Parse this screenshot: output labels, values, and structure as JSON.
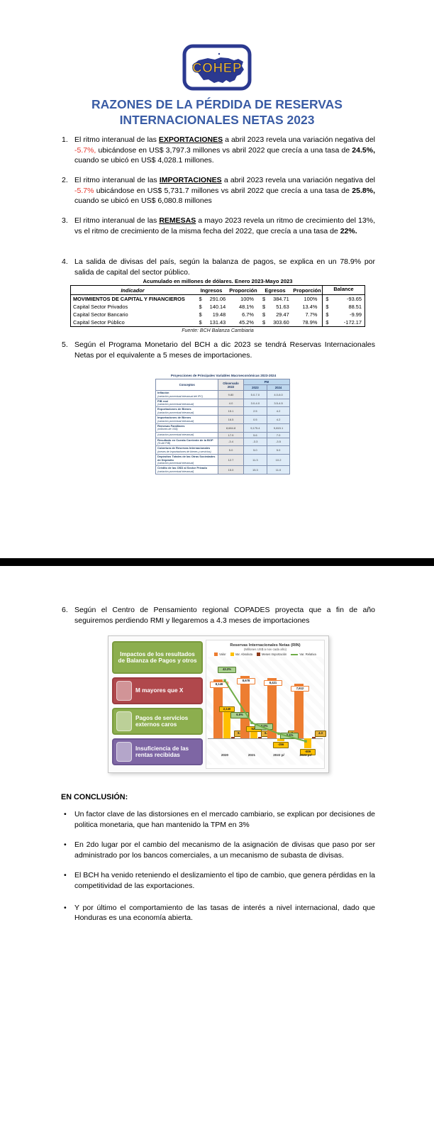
{
  "logo": {
    "text": "COHEP"
  },
  "title": {
    "line1": "RAZONES DE LA PÉRDIDA DE RESERVAS",
    "line2": "INTERNACIONALES NETAS 2023"
  },
  "items": {
    "i1": {
      "num": "1.",
      "pre": "El ritmo interanual de las ",
      "kw": "EXPORTACIONES",
      "m1": " a abril 2023 revela una variación negativa del ",
      "red": "-5.7%,",
      "m2": " ubicándose en US$ 3,797.3 millones vs abril 2022 que crecía a una tasa de ",
      "b": "24.5%,",
      "m3": " cuando se ubicó en US$ 4,028.1 millones."
    },
    "i2": {
      "num": "2.",
      "pre": "El ritmo interanual de las ",
      "kw": "IMPORTACIONES",
      "m1": " a abril 2023 revela una variación negativa del ",
      "red": "-5.7%",
      "m2": " ubicándose en US$ 5,731.7 millones vs abril 2022 que crecía a una tasa de ",
      "b": "25.8%,",
      "m3": " cuando se ubicó en US$ 6,080.8 millones"
    },
    "i3": {
      "num": "3.",
      "pre": "El ritmo interanual de las ",
      "kw": "REMESAS",
      "m1": " a mayo 2023 revela un ritmo de crecimiento del 13%, vs el ritmo de crecimiento de la misma fecha del 2022, que crecía a una tasa de ",
      "b": "22%."
    },
    "i4": {
      "num": "4.",
      "text": "La salida de divisas del país, según la balanza de pagos, se explica en un 78.9% por salida de capital del sector público."
    },
    "i5": {
      "num": "5.",
      "text": "Según el Programa Monetario del BCH a dic 2023 se tendrá Reservas Internacionales Netas por el equivalente a 5 meses de importaciones."
    },
    "i6": {
      "num": "6.",
      "text": "Según el Centro de Pensamiento regional COPADES proyecta que a fin de año seguiremos perdiendo RMI y llegaremos a 4.3 meses de importaciones"
    }
  },
  "table1": {
    "title": "Acumulado en millones de dólares. Enero 2023-Mayo 2023",
    "headers": [
      "Indicador",
      "Ingresos",
      "Proporción",
      "Egresos",
      "Proporción",
      "Balance"
    ],
    "rows": [
      {
        "label": "MOVIMIENTOS DE CAPITAL Y FINANCIEROS",
        "bold": true,
        "ingresos": "291.06",
        "prop1": "100%",
        "egresos": "384.71",
        "prop2": "100%",
        "balance": "-93.65"
      },
      {
        "label": "Capital Sector Privados",
        "bold": false,
        "ingresos": "140.14",
        "prop1": "48.1%",
        "egresos": "51.63",
        "prop2": "13.4%",
        "balance": "88.51"
      },
      {
        "label": "Capital Sector Bancario",
        "bold": false,
        "ingresos": "19.48",
        "prop1": "6.7%",
        "egresos": "29.47",
        "prop2": "7.7%",
        "balance": "-9.99"
      },
      {
        "label": "Capital Sector Público",
        "bold": false,
        "ingresos": "131.43",
        "prop1": "45.2%",
        "egresos": "303.60",
        "prop2": "78.9%",
        "balance": "-172.17"
      }
    ],
    "source": "Fuente: BCH Balanza Cambiaria"
  },
  "pm_table": {
    "title": "Proyecciones de Principales Variables Macroeconómicas 2023-2024",
    "headers": {
      "conceptos": "Conceptos",
      "observado": "Observado",
      "observado_year": "2022",
      "pm": "PM",
      "y2023": "2023",
      "y2024": "2024"
    },
    "rows": [
      {
        "label": "Inflación",
        "sub": "(variación porcentual interanual del IPC)",
        "v": [
          "9.80",
          "5.0-7.0",
          "4.0-6.0"
        ]
      },
      {
        "label": "PIB real",
        "sub": "(variación porcentual interanual)",
        "v": [
          "4.0",
          "3.0-4.0",
          "3.5-4.5"
        ]
      },
      {
        "label": "Exportaciones de Bienes",
        "sub": "(variación porcentual interanual)",
        "v": [
          "15.1",
          "2.5",
          "4.2"
        ]
      },
      {
        "label": "Importaciones de Bienes",
        "sub": "(variación porcentual interanual)",
        "v": [
          "16.5",
          "0.5",
          "4.2"
        ]
      },
      {
        "label": "Remesas Familiares",
        "sub": "(millones de US$)",
        "v": [
          "8,684.8",
          "9,175.4",
          "9,815.1"
        ]
      },
      {
        "label": "",
        "sub": "(variación porcentual interanual)",
        "v": [
          "17.9",
          "5.6",
          "7.0"
        ]
      },
      {
        "label": "Resultado en Cuenta Corriente de la BOP",
        "sub": "(% del PIB)",
        "v": [
          "-3.4",
          "-3.3",
          "-3.5"
        ]
      },
      {
        "label": "Cobertura de Reservas Internacionales",
        "sub": "(meses de importaciones de bienes y servicios)",
        "v": [
          "5.0",
          "5.0",
          "5.0"
        ]
      },
      {
        "label": "Depósitos Totales de las Otras Sociedades de Depósito",
        "sub": "(variación porcentual interanual)",
        "v": [
          "12.7",
          "11.3",
          "10.2"
        ]
      },
      {
        "label": "Crédito de las OSD al Sector Privado",
        "sub": "(variación porcentual interanual)",
        "v": [
          "15.0",
          "15.3",
          "11.0"
        ]
      }
    ]
  },
  "figure": {
    "boxes": [
      {
        "label": "Impactos de los resultados de Balanza de Pagos y otros",
        "color": "#8CAE4E",
        "border": "#7A9A3E",
        "inner": false
      },
      {
        "label": "M mayores que X",
        "color": "#B0484C",
        "border": "#9C3C40",
        "inner": true
      },
      {
        "label": "Pagos de servicios externos caros",
        "color": "#8CAE4E",
        "border": "#7A9A3E",
        "inner": true
      },
      {
        "label": "Insuficiencia de las rentas recibidas",
        "color": "#7E66A4",
        "border": "#6C5692",
        "inner": true
      }
    ]
  },
  "chart_data": {
    "type": "bar",
    "title": "Reservas Internacionales Netas (RIN)",
    "subtitle": "(Millones US$ a nov cada año)",
    "categories": [
      "2020",
      "2021",
      "2022 p/",
      "2023 pr/"
    ],
    "series": [
      {
        "name": "Valor",
        "type": "bar",
        "color": "#ED7D31",
        "values": [
          8149,
          8678,
          8421,
          7612
        ],
        "labels": [
          "8,149",
          "8,678",
          "8,421",
          "7,612"
        ]
      },
      {
        "name": "Var. Absoluta",
        "type": "bar",
        "color": "#FFC000",
        "values": [
          2140,
          529,
          -256,
          -809
        ],
        "labels": [
          "2,140",
          "529",
          "-256",
          "-809"
        ]
      },
      {
        "name": "Meses Importación",
        "type": "bar",
        "color": "#8E3A1B",
        "values": [
          8.8,
          6.4,
          5.1,
          4.3
        ],
        "labels": [
          "8.8",
          "6.4",
          "5.1",
          "4.3"
        ]
      },
      {
        "name": "Var. Relativa",
        "type": "line",
        "color": "#6FAD47",
        "values": [
          43.3,
          6.5,
          -3.0,
          -9.6
        ],
        "labels": [
          "43.3%",
          "6.5%",
          "-3.0%",
          "-9.6%"
        ]
      }
    ],
    "legend_position": "top"
  },
  "conclusion": {
    "heading": "EN CONCLUSIÓN:",
    "bullets": [
      "Un factor clave de las distorsiones en el mercado cambiario, se explican por decisiones de politica monetaria, que han mantenido la TPM en 3%",
      "En 2do lugar por el cambio del mecanismo de la asignación de divisas que paso por ser administrado por los bancos comerciales, a un mecanismo de subasta de divisas.",
      "El BCH ha venido reteniendo el deslizamiento el tipo de cambio, que genera pérdidas en la competitividad de las exportaciones.",
      "Y por último el comportamiento de las tasas de interés a nivel internacional, dado que Honduras es una economía abierta."
    ]
  }
}
